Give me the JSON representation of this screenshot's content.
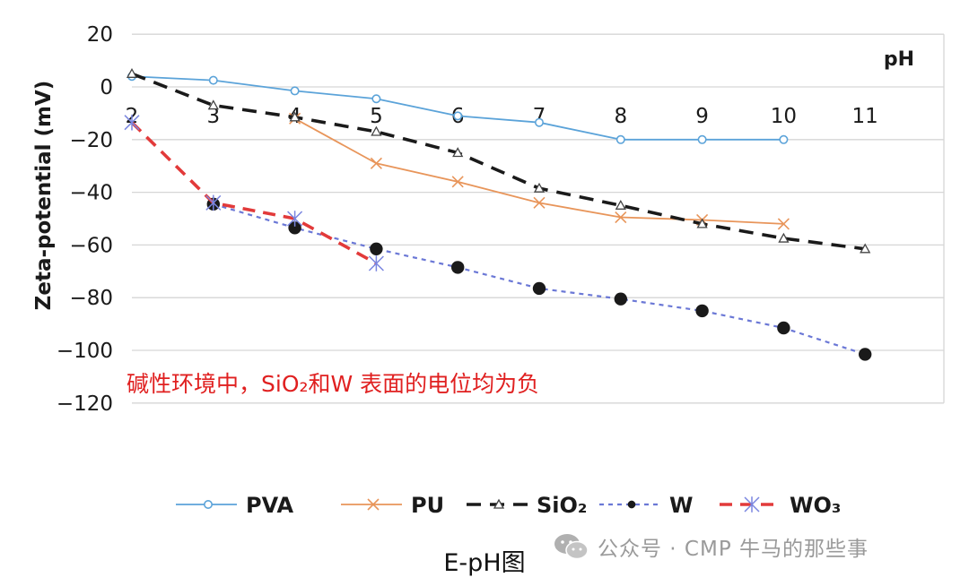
{
  "chart_data": {
    "type": "line",
    "x_axis_title": "pH",
    "y_axis_title": "Zeta-potential (mV)",
    "x_ticks": [
      2,
      3,
      4,
      5,
      6,
      7,
      8,
      9,
      10,
      11
    ],
    "x_tick_labels": [
      "2",
      "3",
      "4",
      "5",
      "6",
      "7",
      "8",
      "9",
      "10",
      "11"
    ],
    "y_ticks": [
      20,
      0,
      -20,
      -40,
      -60,
      -80,
      -100,
      -120
    ],
    "y_tick_labels": [
      "20",
      "0",
      "−20",
      "−40",
      "−60",
      "−80",
      "−100",
      "−120"
    ],
    "xlim": [
      2,
      11
    ],
    "ylim": [
      -120,
      20
    ],
    "grid": "horizontal",
    "legend_position": "bottom",
    "series": [
      {
        "name": "PVA",
        "color": "#5ba3d9",
        "marker": "circle-open",
        "line": "solid",
        "x": [
          2,
          3,
          4,
          5,
          6,
          7,
          8,
          9,
          10
        ],
        "y": [
          4,
          2.5,
          -1.5,
          -4.5,
          -11,
          -13.5,
          -20,
          -20,
          -20
        ]
      },
      {
        "name": "PU",
        "color": "#e8955a",
        "marker": "x",
        "line": "solid",
        "x": [
          4,
          5,
          6,
          7,
          8,
          9,
          10
        ],
        "y": [
          -12,
          -29,
          -36,
          -44,
          -49.5,
          -50.5,
          -52
        ]
      },
      {
        "name": "SiO₂",
        "color": "#1a1a1a",
        "marker": "triangle-open",
        "line": "dashed",
        "x": [
          2,
          3,
          4,
          5,
          6,
          7,
          8,
          9,
          10,
          11
        ],
        "y": [
          5,
          -7,
          -11.5,
          -17,
          -25,
          -38.5,
          -45,
          -52,
          -57.5,
          -61.5
        ]
      },
      {
        "name": "W",
        "color": "#6b78d6",
        "marker": "circle-filled",
        "line": "dotted",
        "x": [
          3,
          4,
          5,
          6,
          7,
          8,
          9,
          10,
          11
        ],
        "y": [
          -44.5,
          -53.5,
          -61.5,
          -68.5,
          -76.5,
          -80.5,
          -85,
          -91.5,
          -101.5
        ]
      },
      {
        "name": "WO₃",
        "color": "#e23a3a",
        "marker": "asterisk",
        "line": "dashed",
        "x": [
          2,
          3,
          4,
          5
        ],
        "y": [
          -13.5,
          -44,
          -50,
          -67
        ]
      }
    ],
    "annotation": {
      "text": "碱性环境中，SiO₂和W 表面的电位均为负",
      "color": "#e02020"
    }
  },
  "caption": "E-pH图",
  "watermark": "公众号 · CMP 牛马的那些事"
}
